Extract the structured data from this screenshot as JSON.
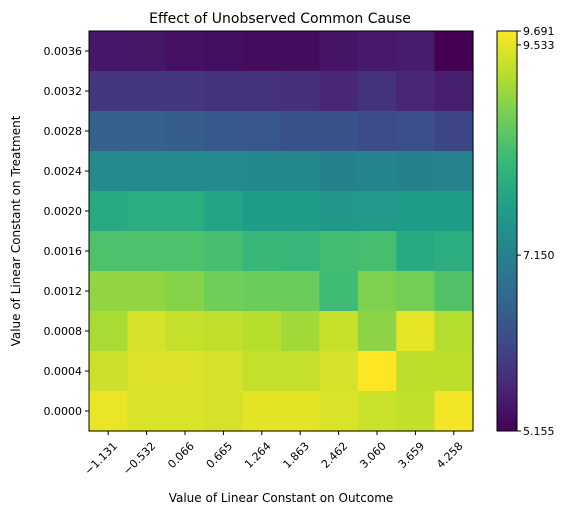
{
  "chart_data": {
    "type": "heatmap",
    "title": "Effect of Unobserved Common Cause",
    "xlabel": "Value of Linear Constant on Outcome",
    "ylabel": "Value of Linear Constant on Treatment",
    "x_ticks": [
      "−1.131",
      "−0.532",
      "0.066",
      "0.665",
      "1.264",
      "1.863",
      "2.462",
      "3.060",
      "3.659",
      "4.258"
    ],
    "y_ticks_top_to_bottom": [
      "0.0036",
      "0.0032",
      "0.0028",
      "0.0024",
      "0.0020",
      "0.0016",
      "0.0012",
      "0.0008",
      "0.0004",
      "0.0000"
    ],
    "colorbar": {
      "min": 5.155,
      "max": 9.691,
      "tick_values": [
        9.691,
        9.533,
        7.15,
        5.155
      ],
      "tick_labels": [
        "9.691",
        "9.533",
        "7.150",
        "5.155"
      ],
      "colormap": "viridis"
    },
    "values_rows_top_to_bottom": [
      [
        5.44,
        5.42,
        5.36,
        5.34,
        5.3,
        5.3,
        5.41,
        5.46,
        5.5,
        5.16
      ],
      [
        5.86,
        5.86,
        5.86,
        5.8,
        5.8,
        5.76,
        5.64,
        5.8,
        5.64,
        5.54
      ],
      [
        6.55,
        6.55,
        6.5,
        6.44,
        6.4,
        6.3,
        6.3,
        6.2,
        6.24,
        6.1
      ],
      [
        7.32,
        7.32,
        7.32,
        7.32,
        7.28,
        7.28,
        7.16,
        7.2,
        7.16,
        7.18
      ],
      [
        7.9,
        7.98,
        7.98,
        7.8,
        7.66,
        7.66,
        7.56,
        7.6,
        7.66,
        7.66
      ],
      [
        8.4,
        8.4,
        8.4,
        8.34,
        8.2,
        8.18,
        8.3,
        8.34,
        7.9,
        7.98
      ],
      [
        8.94,
        8.94,
        8.86,
        8.7,
        8.66,
        8.66,
        8.26,
        8.8,
        8.72,
        8.44
      ],
      [
        9.1,
        9.42,
        9.3,
        9.26,
        9.2,
        9.05,
        9.32,
        8.9,
        9.53,
        9.18
      ],
      [
        9.36,
        9.46,
        9.46,
        9.42,
        9.3,
        9.3,
        9.42,
        9.69,
        9.25,
        9.25
      ],
      [
        9.56,
        9.44,
        9.44,
        9.42,
        9.52,
        9.52,
        9.44,
        9.34,
        9.28,
        9.62
      ]
    ]
  }
}
